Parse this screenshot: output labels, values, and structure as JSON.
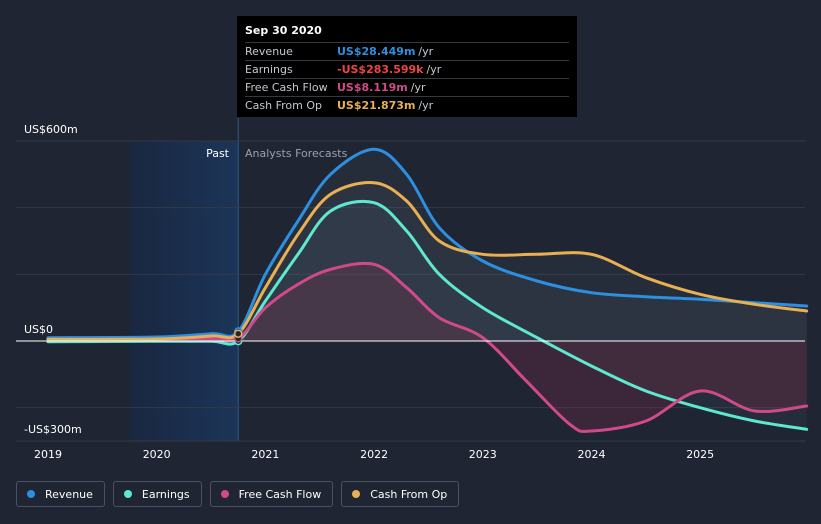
{
  "tooltip": {
    "date": "Sep 30 2020",
    "rows": [
      {
        "label": "Revenue",
        "value": "US$28.449m",
        "unit": "/yr",
        "color": "#2d8fe0"
      },
      {
        "label": "Earnings",
        "value": "-US$283.599k",
        "unit": "/yr",
        "color": "#ef4444"
      },
      {
        "label": "Free Cash Flow",
        "value": "US$8.119m",
        "unit": "/yr",
        "color": "#d04a8a"
      },
      {
        "label": "Cash From Op",
        "value": "US$21.873m",
        "unit": "/yr",
        "color": "#e8b052"
      }
    ]
  },
  "legend": [
    {
      "label": "Revenue",
      "color": "#2d8fe0"
    },
    {
      "label": "Earnings",
      "color": "#5ee8d0"
    },
    {
      "label": "Free Cash Flow",
      "color": "#d04a8a"
    },
    {
      "label": "Cash From Op",
      "color": "#e8b052"
    }
  ],
  "chart_data": {
    "type": "line",
    "y_tick_labels": [
      "US$600m",
      "US$0",
      "-US$300m"
    ],
    "ylim": [
      -300,
      600
    ],
    "xlim": [
      2019,
      2025.98
    ],
    "x_tick_labels": [
      "2019",
      "2020",
      "2021",
      "2022",
      "2023",
      "2024",
      "2025"
    ],
    "regions": {
      "past_label": "Past",
      "forecast_label": "Analysts Forecasts",
      "divider_x": 2020.75,
      "past_start_x": 2019.75
    },
    "grid": true,
    "series": [
      {
        "name": "Revenue",
        "color": "#2d8fe0",
        "x": [
          2019,
          2020,
          2020.5,
          2020.75,
          2021,
          2021.3,
          2021.6,
          2022,
          2022.3,
          2022.6,
          2023,
          2023.5,
          2024,
          2024.5,
          2025,
          2025.5,
          2025.98
        ],
        "y": [
          10,
          12,
          22,
          28.4,
          200,
          360,
          500,
          575,
          500,
          340,
          240,
          180,
          145,
          133,
          125,
          115,
          105
        ]
      },
      {
        "name": "Earnings",
        "color": "#5ee8d0",
        "x": [
          2019,
          2020,
          2020.5,
          2020.75,
          2021,
          2021.3,
          2021.6,
          2022,
          2022.3,
          2022.6,
          2023,
          2023.5,
          2024,
          2024.5,
          2025,
          2025.5,
          2025.98
        ],
        "y": [
          -2,
          -1,
          -1,
          -0.3,
          120,
          260,
          390,
          415,
          330,
          200,
          100,
          10,
          -75,
          -150,
          -200,
          -240,
          -265
        ]
      },
      {
        "name": "Free Cash Flow",
        "color": "#d04a8a",
        "x": [
          2019,
          2020,
          2020.5,
          2020.75,
          2021,
          2021.3,
          2021.6,
          2022,
          2022.3,
          2022.6,
          2023,
          2023.4,
          2023.8,
          2024,
          2024.5,
          2025,
          2025.5,
          2025.98
        ],
        "y": [
          3,
          3,
          6,
          8.1,
          100,
          170,
          215,
          230,
          160,
          70,
          10,
          -120,
          -250,
          -270,
          -240,
          -150,
          -210,
          -195
        ]
      },
      {
        "name": "Cash From Op",
        "color": "#e8b052",
        "x": [
          2019,
          2020,
          2020.5,
          2020.75,
          2021,
          2021.3,
          2021.6,
          2022,
          2022.3,
          2022.6,
          2023,
          2023.5,
          2024,
          2024.5,
          2025,
          2025.5,
          2025.98
        ],
        "y": [
          5,
          6,
          15,
          21.9,
          160,
          320,
          440,
          475,
          420,
          300,
          260,
          260,
          260,
          190,
          140,
          110,
          90
        ]
      }
    ]
  }
}
